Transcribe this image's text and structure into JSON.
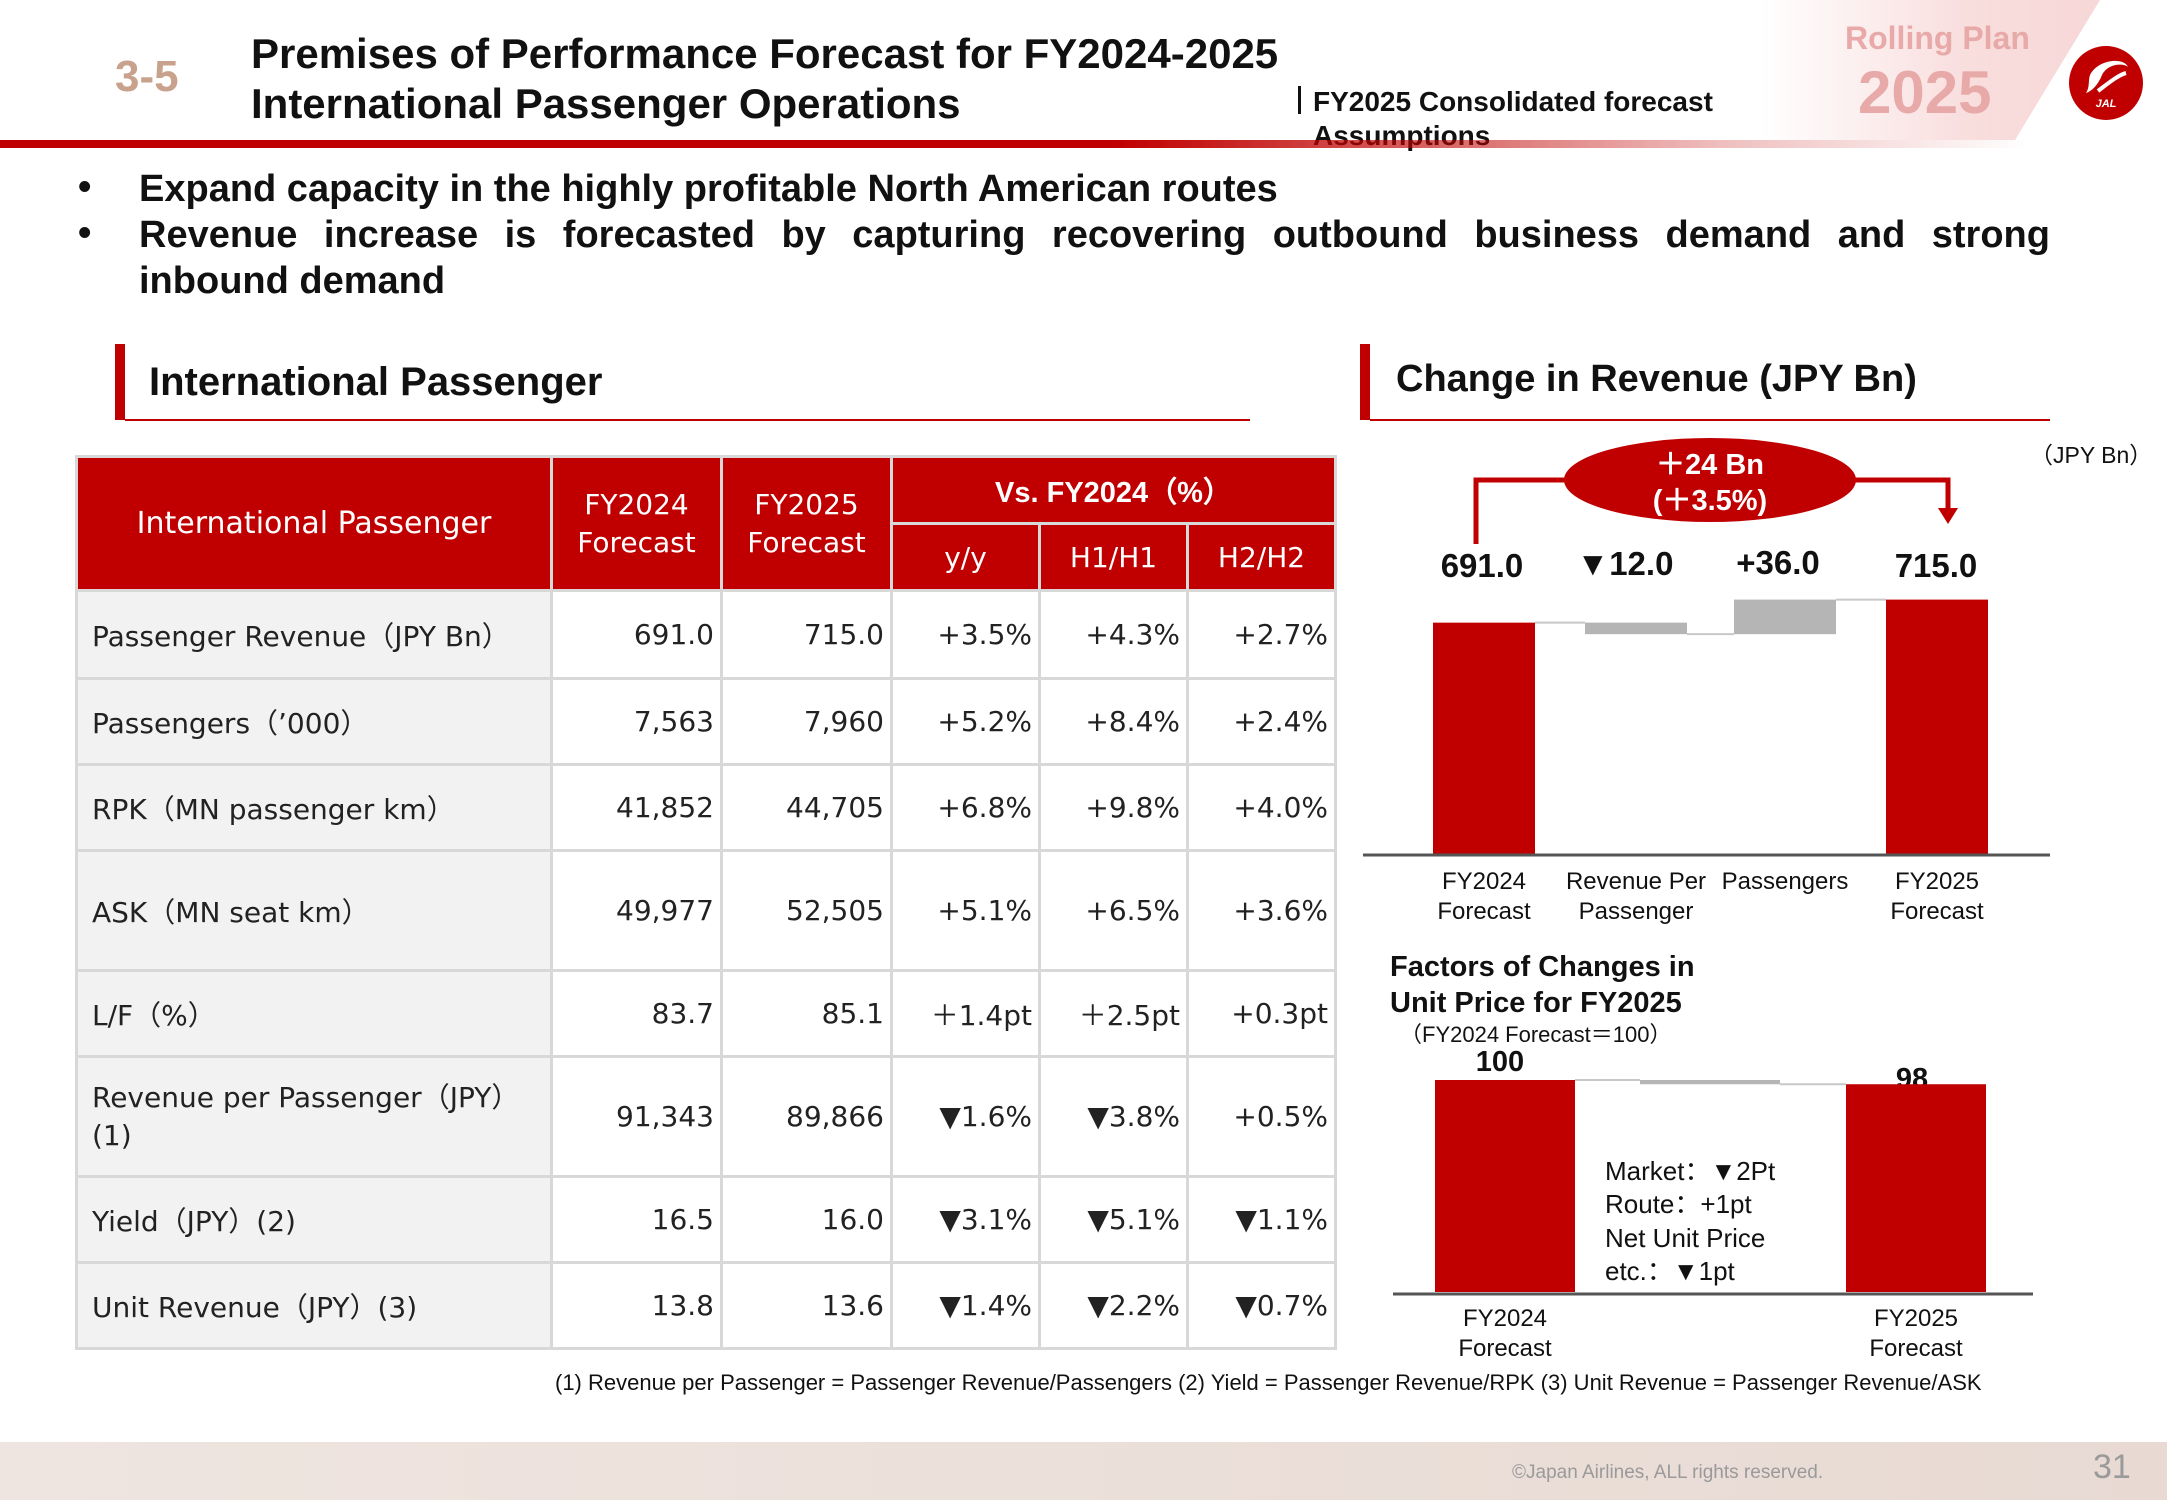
{
  "header": {
    "section_number": "3-5",
    "title_line1": "Premises of Performance Forecast for FY2024-2025",
    "title_line2": "International Passenger Operations",
    "forecast_line1": "FY2025 Consolidated forecast",
    "forecast_line2": "Assumptions",
    "plan_label": "Rolling Plan",
    "plan_year": "2025",
    "logo_text": "JAL",
    "brand_color": "#c00000"
  },
  "bullets": [
    "Expand capacity in the highly profitable North American routes",
    "Revenue increase is forecasted by capturing recovering outbound business demand and strong",
    "inbound demand"
  ],
  "table_section": {
    "title": "International Passenger",
    "header": {
      "row_label": "International Passenger",
      "fy2024": "FY2024 Forecast",
      "fy2025": "FY2025 Forecast",
      "vs_group": "Vs. FY2024（%）",
      "yy": "y/y",
      "h1": "H1/H1",
      "h2": "H2/H2"
    },
    "rows": [
      {
        "label": "Passenger Revenue（JPY Bn）",
        "fy2024": "691.0",
        "fy2025": "715.0",
        "yy": "+3.5%",
        "h1": "+4.3%",
        "h2": "+2.7%"
      },
      {
        "label": "Passengers（’000）",
        "fy2024": "7,563",
        "fy2025": "7,960",
        "yy": "+5.2%",
        "h1": "+8.4%",
        "h2": "+2.4%"
      },
      {
        "label": "RPK（MN passenger km）",
        "fy2024": "41,852",
        "fy2025": "44,705",
        "yy": "+6.8%",
        "h1": "+9.8%",
        "h2": "+4.0%"
      },
      {
        "label": "ASK（MN seat km）",
        "fy2024": "49,977",
        "fy2025": "52,505",
        "yy": "+5.1%",
        "h1": "+6.5%",
        "h2": "+3.6%"
      },
      {
        "label": "L/F（%）",
        "fy2024": "83.7",
        "fy2025": "85.1",
        "yy": "＋1.4pt",
        "h1": "＋2.5pt",
        "h2": "+0.3pt"
      },
      {
        "label": "Revenue per Passenger（JPY）(1)",
        "fy2024": "91,343",
        "fy2025": "89,866",
        "yy": "▼1.6%",
        "h1": "▼3.8%",
        "h2": "+0.5%"
      },
      {
        "label": "Yield（JPY）(2)",
        "fy2024": "16.5",
        "fy2025": "16.0",
        "yy": "▼3.1%",
        "h1": "▼5.1%",
        "h2": "▼1.1%"
      },
      {
        "label": "Unit Revenue（JPY）(3)",
        "fy2024": "13.8",
        "fy2025": "13.6",
        "yy": "▼1.4%",
        "h1": "▼2.2%",
        "h2": "▼0.7%"
      }
    ]
  },
  "chart_section": {
    "title": "Change in Revenue (JPY Bn)",
    "unit_note": "（JPY Bn）",
    "callout_line1": "＋24 Bn",
    "callout_line2": "(＋3.5%)",
    "value_labels": [
      "691.0",
      "▼12.0",
      "+36.0",
      "715.0"
    ],
    "factors_title_line1": "Factors of Changes in",
    "factors_title_line2": "Unit Price for FY2025",
    "factors_subtitle": "（FY2024 Forecast＝100）",
    "factors_value_labels": [
      "100",
      "98"
    ],
    "factors_breakdown": [
      "Market：▼2Pt",
      "Route：+1pt",
      "Net Unit Price",
      "etc.：▼1pt"
    ]
  },
  "chart_data": [
    {
      "type": "bar",
      "subtype": "waterfall",
      "title": "Change in Revenue (JPY Bn)",
      "categories": [
        "FY2024 Forecast",
        "Revenue Per Passenger",
        "Passengers",
        "FY2025 Forecast"
      ],
      "values": [
        691.0,
        -12.0,
        36.0,
        715.0
      ],
      "kinds": [
        "total",
        "delta",
        "delta",
        "total"
      ],
      "colors": {
        "total": "#c00000",
        "delta": "#b5b5b5"
      }
    },
    {
      "type": "bar",
      "subtype": "waterfall",
      "title": "Factors of Changes in Unit Price for FY2025",
      "categories": [
        "FY2024 Forecast",
        "",
        "FY2025 Forecast"
      ],
      "values": [
        100,
        -2,
        98
      ],
      "kinds": [
        "total",
        "delta",
        "total"
      ],
      "colors": {
        "total": "#c00000",
        "delta": "#b5b5b5"
      }
    }
  ],
  "footnote": "(1) Revenue per Passenger = Passenger Revenue/Passengers  (2) Yield = Passenger Revenue/RPK  (3) Unit Revenue = Passenger Revenue/ASK",
  "footer": {
    "copyright": "©Japan Airlines, ALL rights reserved.",
    "page": "31"
  }
}
